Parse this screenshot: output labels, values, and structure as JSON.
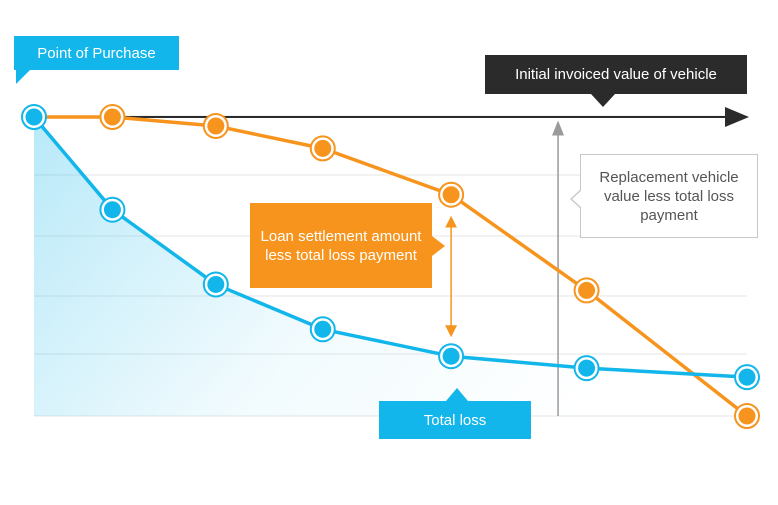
{
  "colors": {
    "total_loss": "#12b6ea",
    "loan_settlement": "#f7941d",
    "invoiced_arrow": "#2b2b2b",
    "grid": "#e6e6e6"
  },
  "annotations": {
    "point_of_purchase": "Point of Purchase",
    "initial_invoiced_value": "Initial invoiced value of vehicle",
    "replacement_vehicle": "Replacement vehicle value less total loss payment",
    "loan_settlement": "Loan settlement amount less total loss payment",
    "total_loss": "Total loss"
  },
  "chart_data": {
    "type": "line",
    "title": "",
    "xlabel": "",
    "ylabel": "",
    "axis_ticks_shown": false,
    "grid": "horizontal",
    "xlim": [
      0,
      100
    ],
    "ylim": [
      0,
      100
    ],
    "x": [
      0,
      11,
      25.5,
      40.5,
      58.5,
      77.5,
      100
    ],
    "series": [
      {
        "name": "Total loss",
        "color": "#12b6ea",
        "values": [
          100,
          69,
          44,
          29,
          20,
          16,
          13
        ],
        "filled_gradient": true
      },
      {
        "name": "Loan settlement",
        "color": "#f7941d",
        "values": [
          100,
          100,
          97,
          89.5,
          74,
          42,
          0
        ]
      }
    ],
    "reference_line": {
      "label": "Initial invoiced value of vehicle",
      "value": 100
    },
    "gap_marker_at_x": 58.5,
    "vertical_marker_at_x": 73.5
  }
}
